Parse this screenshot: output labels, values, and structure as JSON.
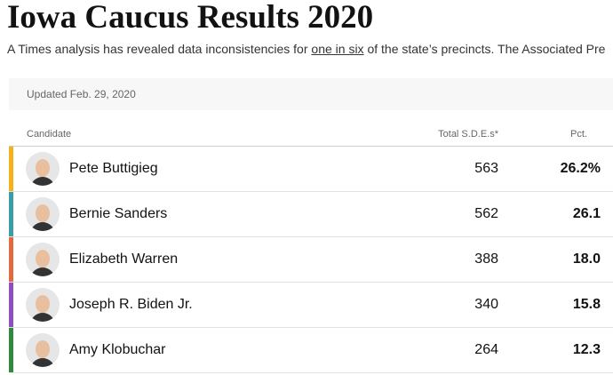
{
  "header": {
    "title": "Iowa Caucus Results 2020",
    "subtitle_before": "A Times analysis has revealed data inconsistencies for ",
    "subtitle_link": "one in six",
    "subtitle_after": " of the state’s precincts. The Associated Pre"
  },
  "table": {
    "updated": "Updated Feb. 29, 2020",
    "columns": [
      "Candidate",
      "Total S.D.E.s*",
      "Pct."
    ],
    "rows": [
      {
        "name": "Pete Buttigieg",
        "sdes": 563,
        "pct": "26.2%",
        "color": "#f3b21c"
      },
      {
        "name": "Bernie Sanders",
        "sdes": 562,
        "pct": "26.1",
        "color": "#3a9ea9"
      },
      {
        "name": "Elizabeth Warren",
        "sdes": 388,
        "pct": "18.0",
        "color": "#e3693f"
      },
      {
        "name": "Joseph R. Biden Jr.",
        "sdes": 340,
        "pct": "15.8",
        "color": "#8e4fbd"
      },
      {
        "name": "Amy Klobuchar",
        "sdes": 264,
        "pct": "12.3",
        "color": "#2e8b3d"
      }
    ]
  }
}
